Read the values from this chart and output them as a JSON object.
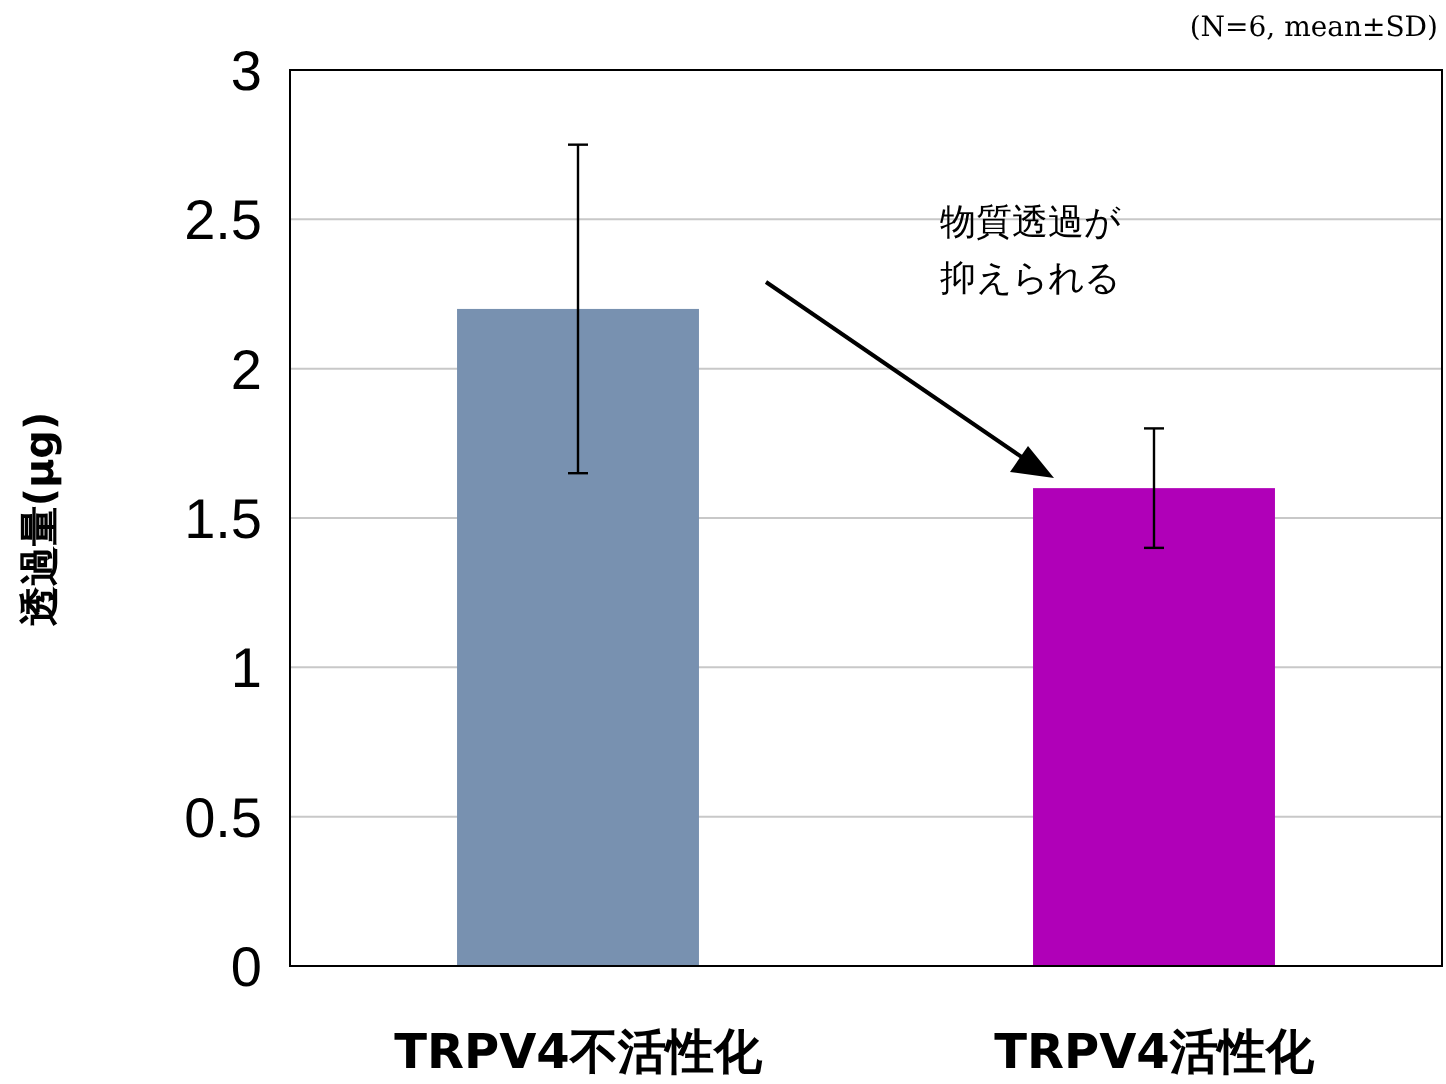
{
  "chart_data": {
    "type": "bar",
    "ylabel": "透過量(μg)",
    "categories": [
      "TRPV4不活性化",
      "TRPV4活性化"
    ],
    "values": [
      2.2,
      1.6
    ],
    "colors": [
      "#7891b0",
      "#b000b8"
    ],
    "errors": [
      0.55,
      0.2
    ],
    "ylim": [
      0,
      3
    ],
    "yticks": [
      0,
      0.5,
      1,
      1.5,
      2,
      2.5,
      3
    ],
    "grid": "y",
    "annotations": [
      "(N=6, mean±SD)",
      "物質透過が抑えられる"
    ]
  }
}
